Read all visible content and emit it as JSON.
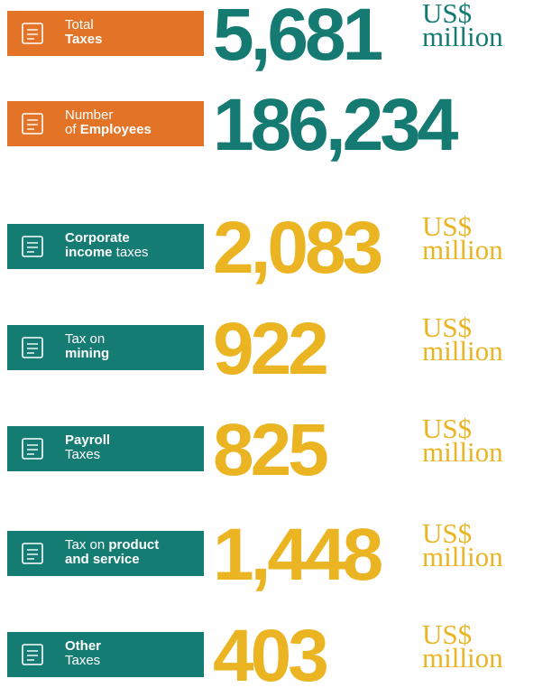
{
  "items": [
    {
      "label": [
        [
          {
            "text": "Total",
            "bold": false
          }
        ],
        [
          {
            "text": "Taxes",
            "bold": true
          }
        ]
      ],
      "value": "5,681",
      "unit": [
        "US$",
        "million"
      ],
      "box_color": "#e27327",
      "value_color": "#147a72"
    },
    {
      "label": [
        [
          {
            "text": "Number",
            "bold": false
          }
        ],
        [
          {
            "text": "of ",
            "bold": false
          },
          {
            "text": "Employees",
            "bold": true
          }
        ]
      ],
      "value": "186,234",
      "unit": [],
      "box_color": "#e27327",
      "value_color": "#147a72"
    },
    {
      "label": [
        [
          {
            "text": "Corporate",
            "bold": true
          }
        ],
        [
          {
            "text": "income",
            "bold": true
          },
          {
            "text": " taxes",
            "bold": false
          }
        ]
      ],
      "value": "2,083",
      "unit": [
        "US$",
        "million"
      ],
      "box_color": "#157c74",
      "value_color": "#ebb422"
    },
    {
      "label": [
        [
          {
            "text": "Tax on",
            "bold": false
          }
        ],
        [
          {
            "text": "mining",
            "bold": true
          }
        ]
      ],
      "value": "922",
      "unit": [
        "US$",
        "million"
      ],
      "box_color": "#157c74",
      "value_color": "#ebb422"
    },
    {
      "label": [
        [
          {
            "text": "Payroll",
            "bold": true
          }
        ],
        [
          {
            "text": "Taxes",
            "bold": false
          }
        ]
      ],
      "value": "825",
      "unit": [
        "US$",
        "million"
      ],
      "box_color": "#157c74",
      "value_color": "#ebb422"
    },
    {
      "label": [
        [
          {
            "text": "Tax on ",
            "bold": false
          },
          {
            "text": "product",
            "bold": true
          }
        ],
        [
          {
            "text": "and service",
            "bold": true
          }
        ]
      ],
      "value": "1,448",
      "unit": [
        "US$",
        "million"
      ],
      "box_color": "#157c74",
      "value_color": "#ebb422"
    },
    {
      "label": [
        [
          {
            "text": "Other",
            "bold": true
          }
        ],
        [
          {
            "text": "Taxes",
            "bold": false
          }
        ]
      ],
      "value": "403",
      "unit": [
        "US$",
        "million"
      ],
      "box_color": "#157c74",
      "value_color": "#ebb422"
    }
  ]
}
